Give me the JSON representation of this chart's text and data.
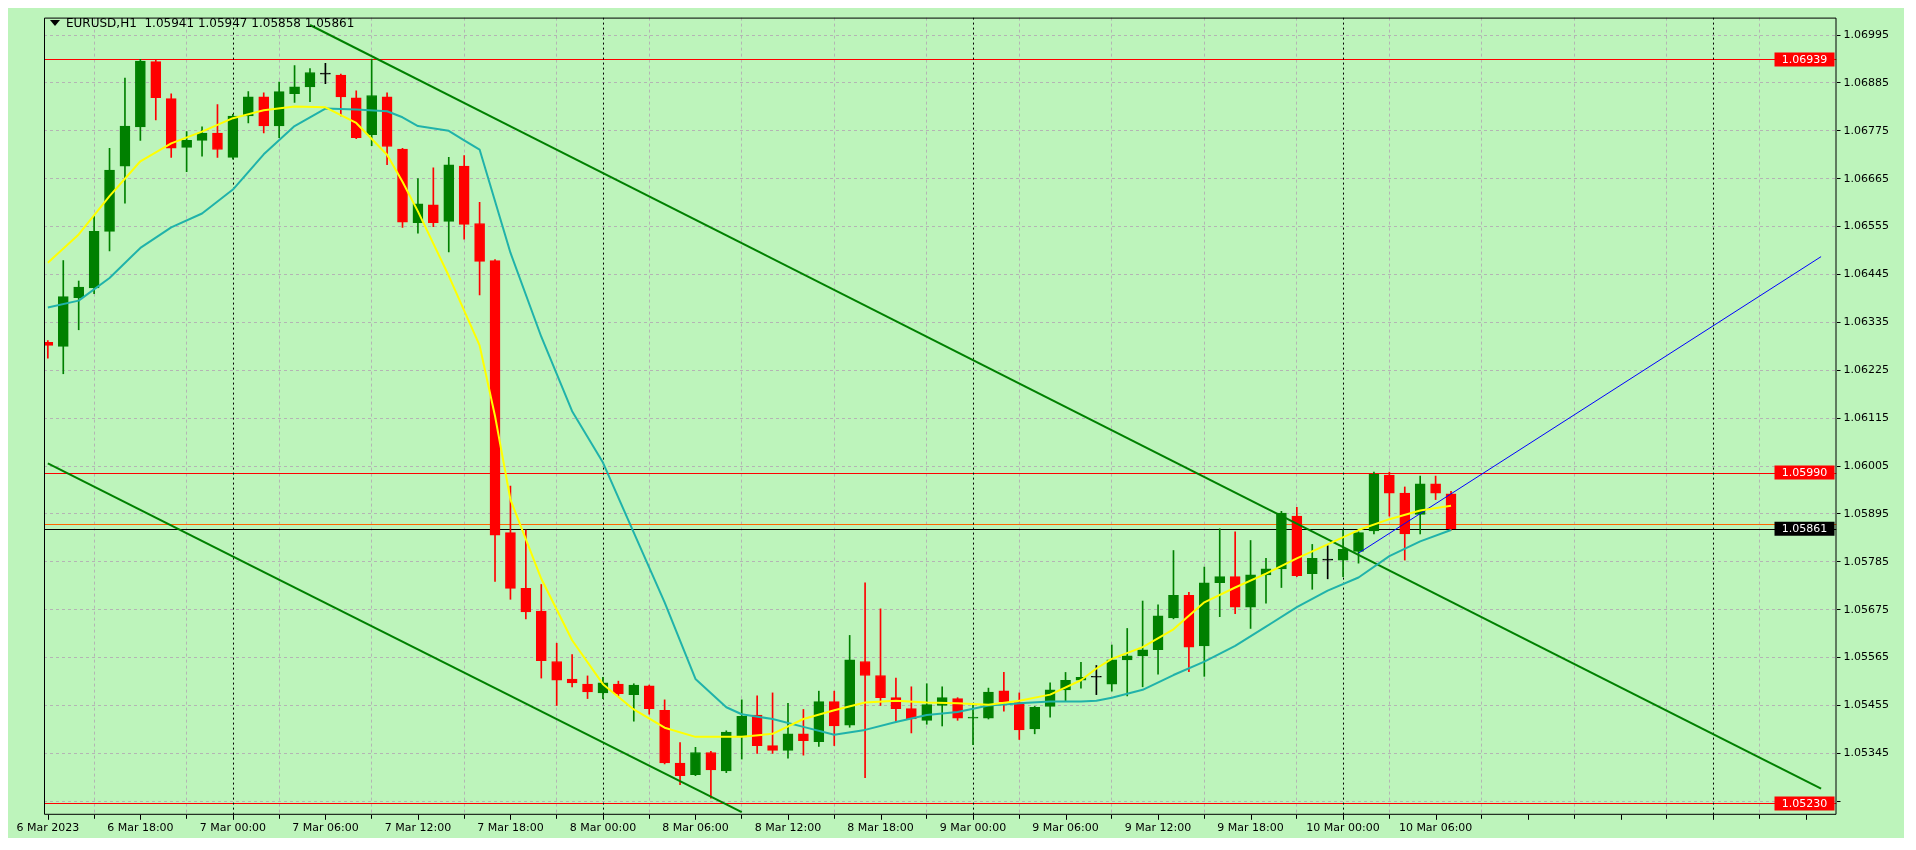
{
  "chart_data": {
    "type": "candlestick",
    "title": "EURUSD,H1  1.05941 1.05947 1.05858 1.05861",
    "x": [
      "2023-03-06T12:00",
      "2023-03-06T13:00",
      "2023-03-06T14:00",
      "2023-03-06T15:00",
      "2023-03-06T16:00",
      "2023-03-06T17:00",
      "2023-03-06T18:00",
      "2023-03-06T19:00",
      "2023-03-06T20:00",
      "2023-03-06T21:00",
      "2023-03-06T22:00",
      "2023-03-06T23:00",
      "2023-03-07T00:00",
      "2023-03-07T01:00",
      "2023-03-07T02:00",
      "2023-03-07T03:00",
      "2023-03-07T04:00",
      "2023-03-07T05:00",
      "2023-03-07T06:00",
      "2023-03-07T07:00",
      "2023-03-07T08:00",
      "2023-03-07T09:00",
      "2023-03-07T10:00",
      "2023-03-07T11:00",
      "2023-03-07T12:00",
      "2023-03-07T13:00",
      "2023-03-07T14:00",
      "2023-03-07T15:00",
      "2023-03-07T16:00",
      "2023-03-07T17:00",
      "2023-03-07T18:00",
      "2023-03-07T19:00",
      "2023-03-07T20:00",
      "2023-03-07T21:00",
      "2023-03-07T22:00",
      "2023-03-07T23:00",
      "2023-03-08T00:00",
      "2023-03-08T01:00",
      "2023-03-08T02:00",
      "2023-03-08T03:00",
      "2023-03-08T04:00",
      "2023-03-08T05:00",
      "2023-03-08T06:00",
      "2023-03-08T07:00",
      "2023-03-08T08:00",
      "2023-03-08T09:00",
      "2023-03-08T10:00",
      "2023-03-08T11:00",
      "2023-03-08T12:00",
      "2023-03-08T13:00",
      "2023-03-08T14:00",
      "2023-03-08T15:00",
      "2023-03-08T16:00",
      "2023-03-08T17:00",
      "2023-03-08T18:00",
      "2023-03-08T19:00",
      "2023-03-08T20:00",
      "2023-03-08T21:00",
      "2023-03-08T22:00",
      "2023-03-08T23:00",
      "2023-03-09T00:00",
      "2023-03-09T01:00",
      "2023-03-09T02:00",
      "2023-03-09T03:00",
      "2023-03-09T04:00",
      "2023-03-09T05:00",
      "2023-03-09T06:00",
      "2023-03-09T07:00",
      "2023-03-09T08:00",
      "2023-03-09T09:00",
      "2023-03-09T10:00",
      "2023-03-09T11:00",
      "2023-03-09T12:00",
      "2023-03-09T13:00",
      "2023-03-09T14:00",
      "2023-03-09T15:00",
      "2023-03-09T16:00",
      "2023-03-09T17:00",
      "2023-03-09T18:00",
      "2023-03-09T19:00",
      "2023-03-09T20:00",
      "2023-03-09T21:00",
      "2023-03-09T22:00",
      "2023-03-09T23:00",
      "2023-03-10T00:00",
      "2023-03-10T01:00",
      "2023-03-10T02:00",
      "2023-03-10T03:00",
      "2023-03-10T04:00",
      "2023-03-10T05:00",
      "2023-03-10T06:00",
      "2023-03-10T07:00"
    ],
    "ohlc": [
      [
        1.06289,
        1.06293,
        1.06253,
        1.06282
      ],
      [
        1.0628,
        1.06477,
        1.06217,
        1.06394
      ],
      [
        1.06392,
        1.0643,
        1.06318,
        1.06416
      ],
      [
        1.06414,
        1.0658,
        1.06401,
        1.06544
      ],
      [
        1.06544,
        1.06735,
        1.06499,
        1.06685
      ],
      [
        1.06694,
        1.06896,
        1.06609,
        1.06786
      ],
      [
        1.06784,
        1.06939,
        1.06753,
        1.06935
      ],
      [
        1.06934,
        1.06937,
        1.068,
        1.06851
      ],
      [
        1.06849,
        1.0686,
        1.06714,
        1.06735
      ],
      [
        1.06737,
        1.06773,
        1.06681,
        1.06753
      ],
      [
        1.06753,
        1.06784,
        1.06717,
        1.0677
      ],
      [
        1.0677,
        1.06835,
        1.06714,
        1.06732
      ],
      [
        1.06714,
        1.06813,
        1.0671,
        1.06809
      ],
      [
        1.06809,
        1.06865,
        1.06793,
        1.06853
      ],
      [
        1.06853,
        1.06862,
        1.0677,
        1.06786
      ],
      [
        1.06786,
        1.06887,
        1.06759,
        1.06865
      ],
      [
        1.0686,
        1.06925,
        1.0684,
        1.06876
      ],
      [
        1.06876,
        1.06918,
        1.06842,
        1.06909
      ],
      [
        1.06905,
        1.0693,
        1.06883,
        1.06905
      ],
      [
        1.06903,
        1.06905,
        1.06809,
        1.06853
      ],
      [
        1.06851,
        1.06867,
        1.06757,
        1.06759
      ],
      [
        1.06766,
        1.0694,
        1.06741,
        1.06856
      ],
      [
        1.06853,
        1.06862,
        1.06697,
        1.06739
      ],
      [
        1.06733,
        1.06735,
        1.06553,
        1.06565
      ],
      [
        1.06564,
        1.06665,
        1.0654,
        1.06607
      ],
      [
        1.06605,
        1.0669,
        1.06555,
        1.06564
      ],
      [
        1.06567,
        1.06714,
        1.06497,
        1.06697
      ],
      [
        1.06694,
        1.06718,
        1.06526,
        1.0656
      ],
      [
        1.06562,
        1.06611,
        1.06398,
        1.06475
      ],
      [
        1.06477,
        1.06479,
        1.0574,
        1.05846
      ],
      [
        1.05852,
        1.05959,
        1.05699,
        1.05724
      ],
      [
        1.05724,
        1.05858,
        1.05654,
        1.0567
      ],
      [
        1.05672,
        1.05733,
        1.05518,
        1.05558
      ],
      [
        1.05556,
        1.05598,
        1.05455,
        1.05513
      ],
      [
        1.05516,
        1.05572,
        1.05498,
        1.05507
      ],
      [
        1.05504,
        1.05523,
        1.05471,
        1.05486
      ],
      [
        1.05484,
        1.0552,
        1.05471,
        1.05507
      ],
      [
        1.05504,
        1.05511,
        1.05477,
        1.05482
      ],
      [
        1.0548,
        1.05505,
        1.05419,
        1.05502
      ],
      [
        1.055,
        1.05502,
        1.05435,
        1.05448
      ],
      [
        1.05444,
        1.05468,
        1.05321,
        1.05323
      ],
      [
        1.05323,
        1.0537,
        1.05273,
        1.05294
      ],
      [
        1.05296,
        1.05359,
        1.05294,
        1.05347
      ],
      [
        1.05347,
        1.0535,
        1.05242,
        1.05307
      ],
      [
        1.05305,
        1.05397,
        1.05301,
        1.05394
      ],
      [
        1.05383,
        1.05468,
        1.05332,
        1.0543
      ],
      [
        1.05433,
        1.05477,
        1.05345,
        1.05363
      ],
      [
        1.05363,
        1.05484,
        1.05345,
        1.05352
      ],
      [
        1.05352,
        1.0546,
        1.05334,
        1.0539
      ],
      [
        1.0539,
        1.05446,
        1.05341,
        1.05374
      ],
      [
        1.05372,
        1.05488,
        1.05361,
        1.05464
      ],
      [
        1.05464,
        1.05488,
        1.05363,
        1.05408
      ],
      [
        1.0541,
        1.05616,
        1.05405,
        1.0556
      ],
      [
        1.05556,
        1.05737,
        1.05289,
        1.05524
      ],
      [
        1.05524,
        1.05677,
        1.05455,
        1.05473
      ],
      [
        1.05473,
        1.05518,
        1.05417,
        1.05448
      ],
      [
        1.05448,
        1.05498,
        1.05392,
        1.05424
      ],
      [
        1.05421,
        1.05505,
        1.05412,
        1.05457
      ],
      [
        1.05455,
        1.05498,
        1.05408,
        1.05473
      ],
      [
        1.05471,
        1.05473,
        1.05421,
        1.05426
      ],
      [
        1.05426,
        1.05457,
        1.05365,
        1.05428
      ],
      [
        1.05426,
        1.05495,
        1.05424,
        1.05486
      ],
      [
        1.05489,
        1.05531,
        1.05442,
        1.05464
      ],
      [
        1.05462,
        1.05484,
        1.05377,
        1.05399
      ],
      [
        1.05401,
        1.05453,
        1.0539,
        1.05451
      ],
      [
        1.05453,
        1.05507,
        1.05428,
        1.05491
      ],
      [
        1.05491,
        1.05531,
        1.05464,
        1.05513
      ],
      [
        1.05513,
        1.05554,
        1.05495,
        1.0552
      ],
      [
        1.0552,
        1.05547,
        1.0548,
        1.0552
      ],
      [
        1.05504,
        1.05594,
        1.05488,
        1.0556
      ],
      [
        1.0556,
        1.05632,
        1.05477,
        1.05569
      ],
      [
        1.05569,
        1.05695,
        1.05498,
        1.05583
      ],
      [
        1.05583,
        1.05686,
        1.05527,
        1.05661
      ],
      [
        1.05656,
        1.05811,
        1.05654,
        1.05708
      ],
      [
        1.05708,
        1.05715,
        1.05533,
        1.05589
      ],
      [
        1.05592,
        1.05773,
        1.05522,
        1.05737
      ],
      [
        1.05737,
        1.05861,
        1.05659,
        1.05751
      ],
      [
        1.05751,
        1.05854,
        1.05666,
        1.05681
      ],
      [
        1.05681,
        1.05834,
        1.05632,
        1.05755
      ],
      [
        1.05755,
        1.05793,
        1.0569,
        1.05769
      ],
      [
        1.05769,
        1.05901,
        1.05726,
        1.05897
      ],
      [
        1.0589,
        1.0591,
        1.05751,
        1.05753
      ],
      [
        1.05758,
        1.05825,
        1.05722,
        1.05793
      ],
      [
        1.05789,
        1.05822,
        1.05746,
        1.05789
      ],
      [
        1.05789,
        1.05858,
        1.05751,
        1.05814
      ],
      [
        1.05809,
        1.05854,
        1.05782,
        1.05852
      ],
      [
        1.05856,
        1.05991,
        1.05849,
        1.05986
      ],
      [
        1.05984,
        1.05991,
        1.0589,
        1.05943
      ],
      [
        1.05943,
        1.05957,
        1.05789,
        1.05849
      ],
      [
        1.05894,
        1.05982,
        1.05849,
        1.05964
      ],
      [
        1.05964,
        1.05982,
        1.05928,
        1.05943
      ],
      [
        1.05941,
        1.05947,
        1.05858,
        1.05861
      ]
    ],
    "colors": [
      "#ff0000",
      "#008000",
      "#008000",
      "#008000",
      "#008000",
      "#008000",
      "#008000",
      "#ff0000",
      "#ff0000",
      "#008000",
      "#008000",
      "#ff0000",
      "#008000",
      "#008000",
      "#ff0000",
      "#008000",
      "#008000",
      "#008000",
      "#000000",
      "#ff0000",
      "#ff0000",
      "#008000",
      "#ff0000",
      "#ff0000",
      "#008000",
      "#ff0000",
      "#008000",
      "#ff0000",
      "#ff0000",
      "#ff0000",
      "#ff0000",
      "#ff0000",
      "#ff0000",
      "#ff0000",
      "#ff0000",
      "#ff0000",
      "#008000",
      "#ff0000",
      "#008000",
      "#ff0000",
      "#ff0000",
      "#ff0000",
      "#008000",
      "#ff0000",
      "#008000",
      "#008000",
      "#ff0000",
      "#ff0000",
      "#008000",
      "#ff0000",
      "#008000",
      "#ff0000",
      "#008000",
      "#ff0000",
      "#ff0000",
      "#ff0000",
      "#ff0000",
      "#008000",
      "#008000",
      "#ff0000",
      "#008000",
      "#008000",
      "#ff0000",
      "#ff0000",
      "#008000",
      "#008000",
      "#008000",
      "#008000",
      "#000000",
      "#008000",
      "#008000",
      "#008000",
      "#008000",
      "#008000",
      "#ff0000",
      "#008000",
      "#008000",
      "#ff0000",
      "#008000",
      "#008000",
      "#008000",
      "#ff0000",
      "#008000",
      "#000000",
      "#008000",
      "#008000",
      "#008000",
      "#ff0000",
      "#ff0000",
      "#008000",
      "#ff0000",
      "#ff0000"
    ],
    "series": [
      {
        "type": "line",
        "color": "#ffff00",
        "x": [
          "2023-03-06T12:00",
          "2023-03-06T14:00",
          "2023-03-06T16:00",
          "2023-03-06T18:00",
          "2023-03-06T20:00",
          "2023-03-06T22:00",
          "2023-03-07T00:00",
          "2023-03-07T02:00",
          "2023-03-07T04:00",
          "2023-03-07T06:00",
          "2023-03-07T08:00",
          "2023-03-07T10:00",
          "2023-03-07T11:00",
          "2023-03-07T12:00",
          "2023-03-07T14:00",
          "2023-03-07T16:00",
          "2023-03-07T17:00",
          "2023-03-07T18:00",
          "2023-03-07T20:00",
          "2023-03-07T22:00",
          "2023-03-08T00:00",
          "2023-03-08T02:00",
          "2023-03-08T04:00",
          "2023-03-08T06:00",
          "2023-03-08T08:00",
          "2023-03-08T09:00",
          "2023-03-08T11:00",
          "2023-03-08T13:00",
          "2023-03-08T15:00",
          "2023-03-08T17:00",
          "2023-03-08T19:00",
          "2023-03-08T21:00",
          "2023-03-08T23:00",
          "2023-03-09T01:00",
          "2023-03-09T03:00",
          "2023-03-09T05:00",
          "2023-03-09T07:00",
          "2023-03-09T08:00",
          "2023-03-09T09:00",
          "2023-03-09T11:00",
          "2023-03-09T13:00",
          "2023-03-09T15:00",
          "2023-03-09T17:00",
          "2023-03-09T19:00",
          "2023-03-09T21:00",
          "2023-03-09T23:00",
          "2023-03-10T01:00",
          "2023-03-10T03:00",
          "2023-03-10T05:00",
          "2023-03-10T07:00"
        ],
        "values": [
          1.06472,
          1.06537,
          1.06625,
          1.06705,
          1.06746,
          1.06773,
          1.06804,
          1.06822,
          1.06831,
          1.06829,
          1.06793,
          1.0672,
          1.06658,
          1.0659,
          1.06442,
          1.06282,
          1.0612,
          1.05928,
          1.05746,
          1.05605,
          1.05504,
          1.05446,
          1.05404,
          1.05383,
          1.05383,
          1.05383,
          1.0539,
          1.05424,
          1.05444,
          1.05462,
          1.05466,
          1.05462,
          1.0546,
          1.05457,
          1.05466,
          1.0548,
          1.05513,
          1.0554,
          1.05562,
          1.05589,
          1.0563,
          1.05692,
          1.05726,
          1.05758,
          1.05793,
          1.05825,
          1.05858,
          1.05883,
          1.05903,
          1.05914
        ]
      },
      {
        "type": "line",
        "color": "#20b2aa",
        "x": [
          "2023-03-06T12:00",
          "2023-03-06T14:00",
          "2023-03-06T16:00",
          "2023-03-06T18:00",
          "2023-03-06T20:00",
          "2023-03-06T22:00",
          "2023-03-07T00:00",
          "2023-03-07T02:00",
          "2023-03-07T04:00",
          "2023-03-07T06:00",
          "2023-03-07T08:00",
          "2023-03-07T10:00",
          "2023-03-07T11:00",
          "2023-03-07T12:00",
          "2023-03-07T14:00",
          "2023-03-07T15:00",
          "2023-03-07T16:00",
          "2023-03-07T18:00",
          "2023-03-07T20:00",
          "2023-03-07T22:00",
          "2023-03-08T00:00",
          "2023-03-08T02:00",
          "2023-03-08T04:00",
          "2023-03-08T06:00",
          "2023-03-08T08:00",
          "2023-03-08T09:00",
          "2023-03-08T11:00",
          "2023-03-08T13:00",
          "2023-03-08T15:00",
          "2023-03-08T17:00",
          "2023-03-08T19:00",
          "2023-03-08T21:00",
          "2023-03-08T23:00",
          "2023-03-09T01:00",
          "2023-03-09T03:00",
          "2023-03-09T05:00",
          "2023-03-09T07:00",
          "2023-03-09T08:00",
          "2023-03-09T09:00",
          "2023-03-09T11:00",
          "2023-03-09T13:00",
          "2023-03-09T15:00",
          "2023-03-09T17:00",
          "2023-03-09T19:00",
          "2023-03-09T21:00",
          "2023-03-09T23:00",
          "2023-03-10T01:00",
          "2023-03-10T03:00",
          "2023-03-10T05:00",
          "2023-03-10T07:00"
        ],
        "values": [
          1.06369,
          1.06385,
          1.06437,
          1.06506,
          1.06553,
          1.06585,
          1.0664,
          1.06721,
          1.06786,
          1.06826,
          1.06824,
          1.0682,
          1.06806,
          1.06786,
          1.06775,
          1.06753,
          1.06732,
          1.06495,
          1.06302,
          1.06131,
          1.06013,
          1.05852,
          1.05692,
          1.05516,
          1.05451,
          1.05435,
          1.05424,
          1.05406,
          1.05388,
          1.05399,
          1.05417,
          1.05433,
          1.0544,
          1.05455,
          1.0546,
          1.05464,
          1.05464,
          1.05466,
          1.05473,
          1.05491,
          1.05525,
          1.05556,
          1.05592,
          1.05636,
          1.05681,
          1.05719,
          1.05749,
          1.05798,
          1.05832,
          1.05858
        ]
      },
      {
        "type": "line",
        "color": "#008000",
        "x": [
          "2023-03-07T05:00",
          "2023-03-11T07:00"
        ],
        "values": [
          1.07018,
          1.05264
        ]
      },
      {
        "type": "line",
        "color": "#008000",
        "x": [
          "2023-03-06T12:00",
          "2023-03-08T09:00"
        ],
        "values": [
          1.06011,
          1.0521
        ]
      },
      {
        "type": "line",
        "color": "#0000ff",
        "x": [
          "2023-03-10T01:00",
          "2023-03-11T07:00"
        ],
        "values": [
          1.05805,
          1.06486
        ]
      }
    ],
    "xlim": [
      "2023-03-06T11:45",
      "2023-03-11T08:00"
    ],
    "xticks": [
      {
        "value": "2023-03-06T12:00",
        "label": "6 Mar 2023"
      },
      {
        "value": "2023-03-06T18:00",
        "label": "6 Mar 18:00"
      },
      {
        "value": "2023-03-07T00:00",
        "label": "7 Mar 00:00"
      },
      {
        "value": "2023-03-07T06:00",
        "label": "7 Mar 06:00"
      },
      {
        "value": "2023-03-07T12:00",
        "label": "7 Mar 12:00"
      },
      {
        "value": "2023-03-07T18:00",
        "label": "7 Mar 18:00"
      },
      {
        "value": "2023-03-08T00:00",
        "label": "8 Mar 00:00"
      },
      {
        "value": "2023-03-08T06:00",
        "label": "8 Mar 06:00"
      },
      {
        "value": "2023-03-08T12:00",
        "label": "8 Mar 12:00"
      },
      {
        "value": "2023-03-08T18:00",
        "label": "8 Mar 18:00"
      },
      {
        "value": "2023-03-09T00:00",
        "label": "9 Mar 00:00"
      },
      {
        "value": "2023-03-09T06:00",
        "label": "9 Mar 06:00"
      },
      {
        "value": "2023-03-09T12:00",
        "label": "9 Mar 12:00"
      },
      {
        "value": "2023-03-09T18:00",
        "label": "9 Mar 18:00"
      },
      {
        "value": "2023-03-10T00:00",
        "label": "10 Mar 00:00"
      },
      {
        "value": "2023-03-10T06:00",
        "label": "10 Mar 06:00"
      },
      {
        "value": "2023-03-10T12:00",
        "label": null
      },
      {
        "value": "2023-03-10T18:00",
        "label": null
      },
      {
        "value": "2023-03-11T00:00",
        "label": null
      },
      {
        "value": "2023-03-11T06:00",
        "label": null
      }
    ],
    "ylim": [
      1.05204,
      1.07035
    ],
    "yticks": [
      {
        "value": 1.05235,
        "label": null
      },
      1.05345,
      1.05455,
      1.05565,
      1.05675,
      1.05785,
      1.05895,
      1.06005,
      1.06115,
      1.06225,
      1.06335,
      1.06445,
      1.06555,
      1.06665,
      1.06775,
      1.06885,
      1.06995
    ],
    "grid": true,
    "ref_lines": [
      {
        "axis": "y",
        "value": 1.06939,
        "label": "1.06939",
        "color": "#ff0000"
      },
      {
        "axis": "y",
        "value": 1.0599,
        "label": "1.05990",
        "color": "#ff0000"
      },
      {
        "axis": "y",
        "value": 1.0523,
        "label": "1.05230",
        "color": "#ff0000"
      },
      {
        "axis": "y",
        "value": 1.05872,
        "label": null,
        "color": "#ff6600"
      },
      {
        "axis": "y",
        "value": 1.05861,
        "label": "1.05861",
        "color": "#000000"
      },
      {
        "axis": "x",
        "value": "2023-03-07T00:00",
        "label": null,
        "color": "#000000",
        "line_style": "dotted"
      },
      {
        "axis": "x",
        "value": "2023-03-08T00:00",
        "label": null,
        "color": "#000000",
        "line_style": "dotted"
      },
      {
        "axis": "x",
        "value": "2023-03-09T00:00",
        "label": null,
        "color": "#000000",
        "line_style": "dotted"
      },
      {
        "axis": "x",
        "value": "2023-03-10T00:00",
        "label": null,
        "color": "#000000",
        "line_style": "dotted"
      },
      {
        "axis": "x",
        "value": "2023-03-11T00:00",
        "label": null,
        "color": "#000000",
        "line_style": "dotted"
      }
    ]
  }
}
